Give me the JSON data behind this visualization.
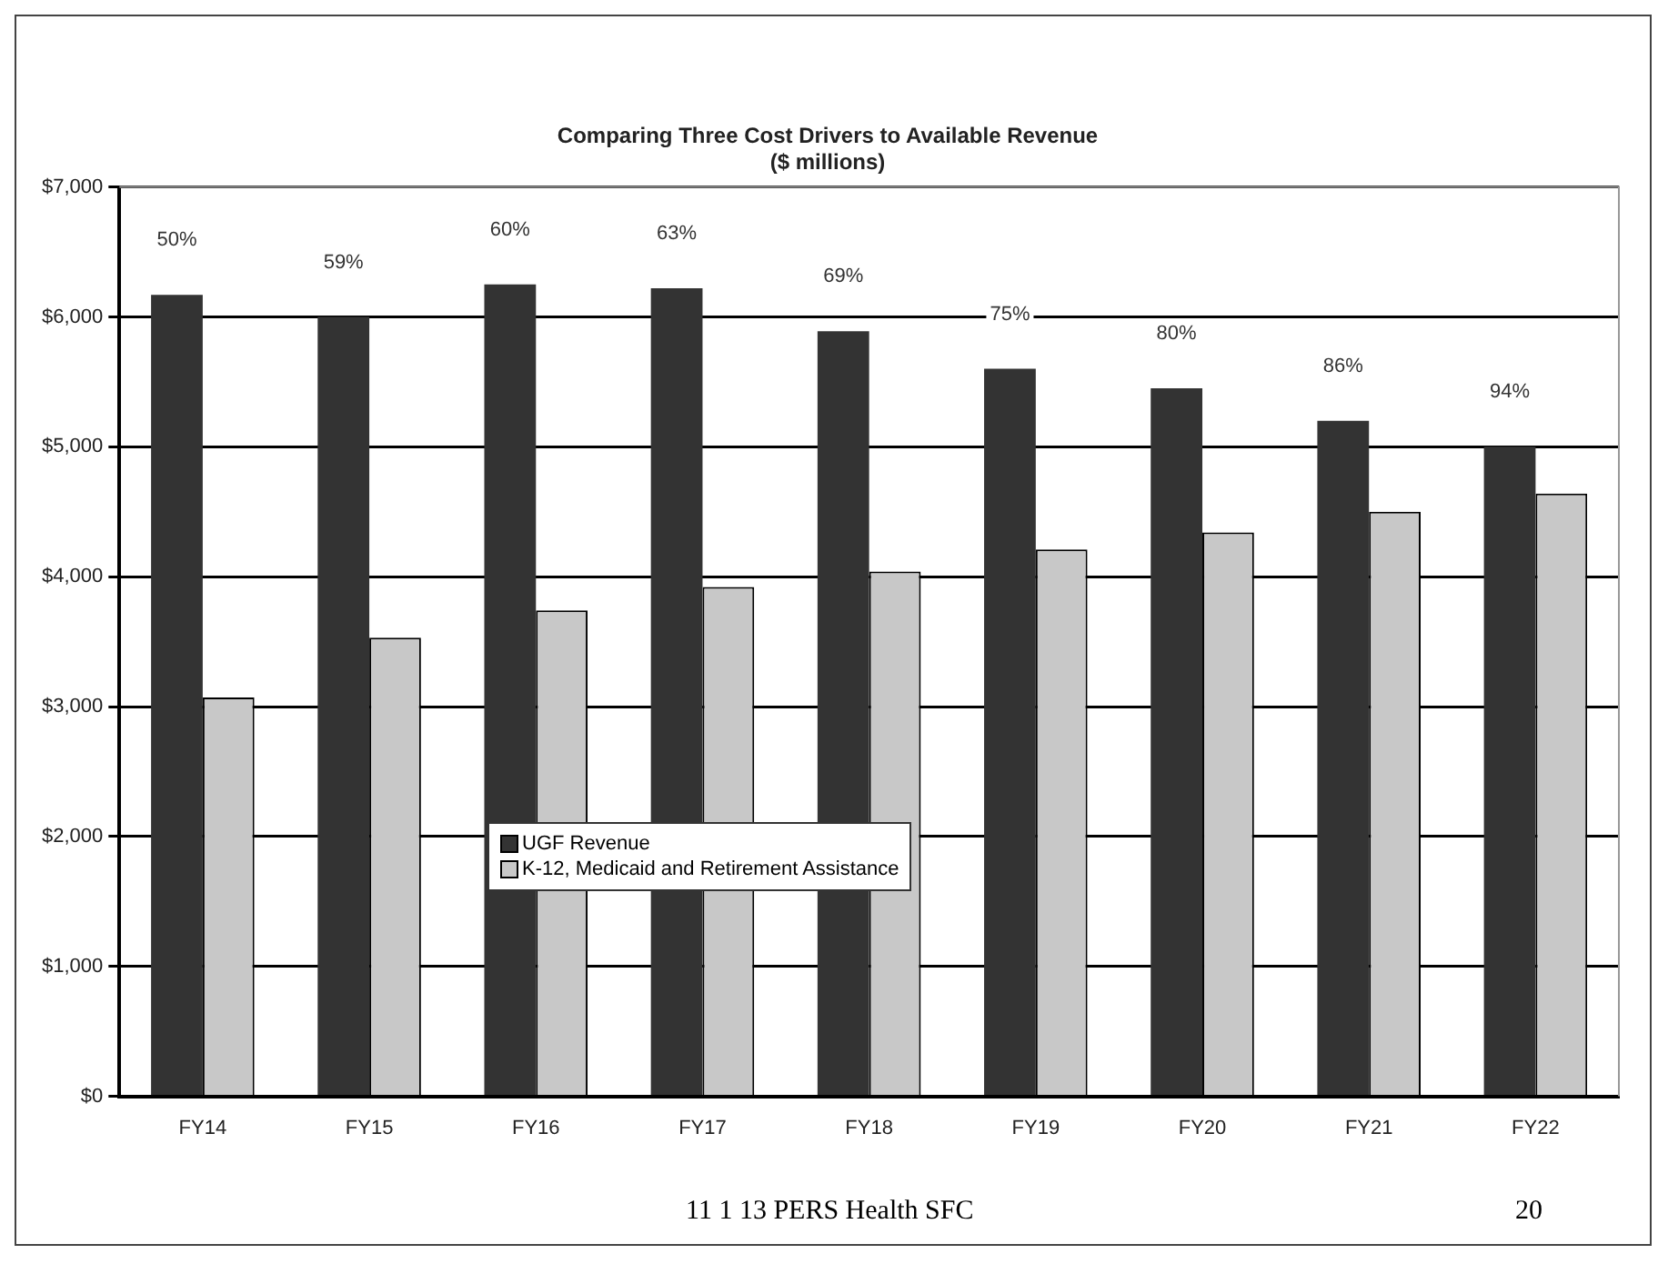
{
  "chart_data": {
    "type": "bar",
    "title": "Comparing Three Cost Drivers to Available Revenue",
    "subtitle": "($ millions)",
    "categories": [
      "FY14",
      "FY15",
      "FY16",
      "FY17",
      "FY18",
      "FY19",
      "FY20",
      "FY21",
      "FY22"
    ],
    "series": [
      {
        "name": "UGF Revenue",
        "color": "#333333",
        "values": [
          6170,
          6000,
          6250,
          6220,
          5890,
          5600,
          5450,
          5200,
          5000
        ]
      },
      {
        "name": "K-12, Medicaid and Retirement Assistance",
        "color": "#c8c8c8",
        "values": [
          3070,
          3530,
          3740,
          3920,
          4040,
          4210,
          4340,
          4500,
          4640
        ]
      }
    ],
    "ylim": [
      0,
      7000
    ],
    "yticks": [
      {
        "value": 0,
        "label": "$0"
      },
      {
        "value": 1000,
        "label": "$1,000"
      },
      {
        "value": 2000,
        "label": "$2,000"
      },
      {
        "value": 3000,
        "label": "$3,000"
      },
      {
        "value": 4000,
        "label": "$4,000"
      },
      {
        "value": 5000,
        "label": "$5,000"
      },
      {
        "value": 6000,
        "label": "$6,000"
      },
      {
        "value": 7000,
        "label": "$7,000"
      }
    ],
    "grid": "y",
    "legend": "center left",
    "annotations": [
      "50%",
      "59%",
      "60%",
      "63%",
      "69%",
      "75%",
      "80%",
      "86%",
      "94%",
      "11 1 13 PERS Health SFC",
      "20"
    ]
  }
}
